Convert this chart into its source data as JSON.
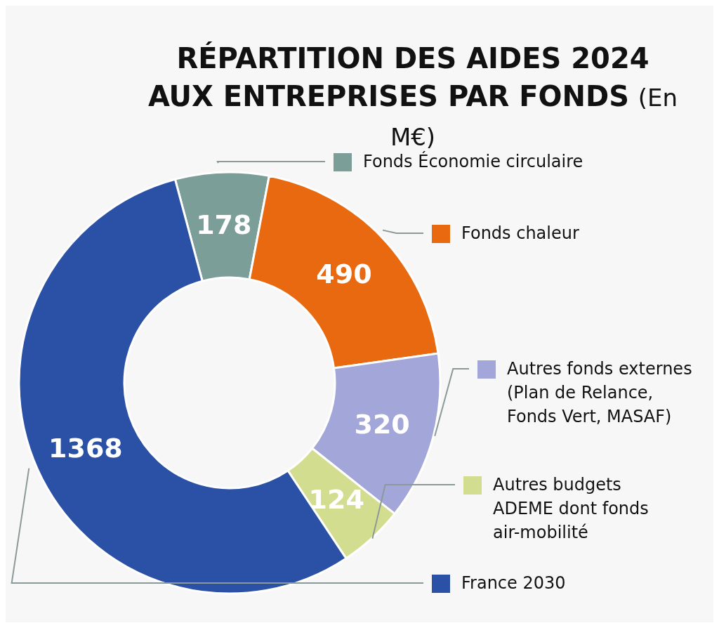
{
  "chart_data": {
    "type": "donut",
    "title": "RÉPARTITION DES AIDES 2024\nAUX ENTREPRISES PAR FONDS",
    "subtitle": "(En M€)",
    "categories": [
      "Fonds Économie circulaire",
      "Fonds chaleur",
      "Autres fonds externes\n(Plan de Relance,\nFonds Vert, MASAF)",
      "Autres budgets\nADEME dont fonds\nair-mobilité",
      "France 2030"
    ],
    "values": [
      178,
      490,
      320,
      124,
      1368
    ],
    "colors": [
      "#7b9e98",
      "#e8690f",
      "#a3a6d9",
      "#d3dd8f",
      "#2a51a5"
    ],
    "data_labels": true,
    "legend": "right"
  }
}
